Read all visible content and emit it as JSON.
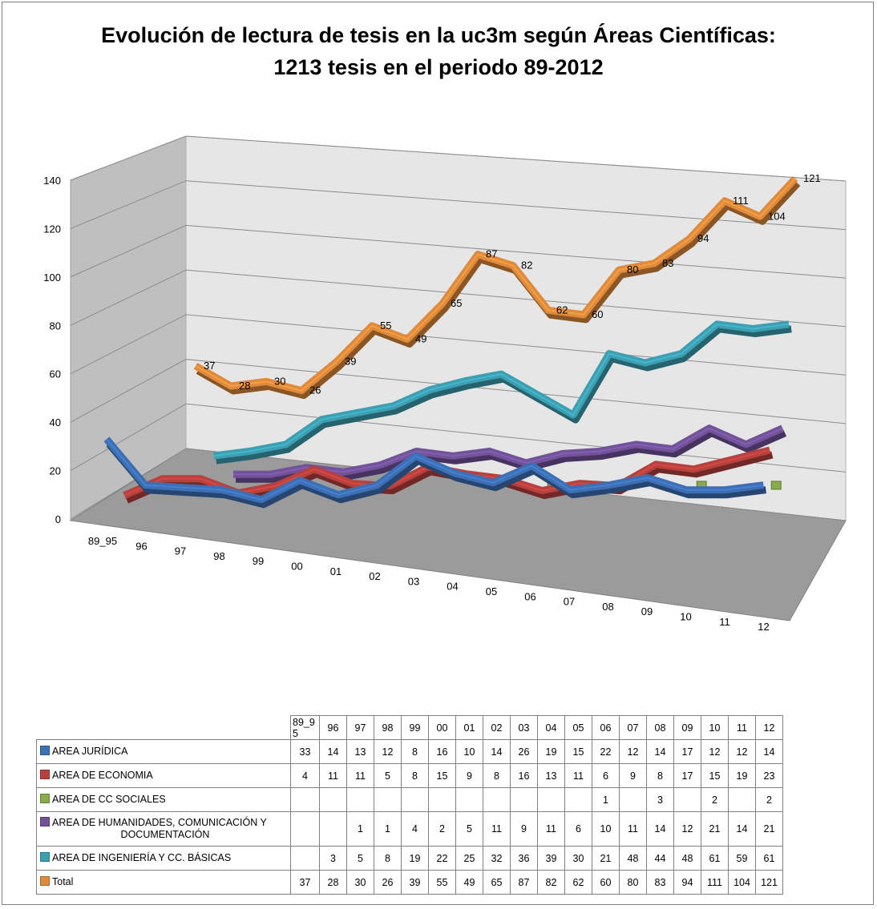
{
  "chart_data": {
    "type": "line",
    "title_line1": "Evolución de lectura de tesis en la uc3m según Áreas Científicas:",
    "title_line2": "1213 tesis  en el periodo 89-2012",
    "categories": [
      "89_95",
      "96",
      "97",
      "98",
      "99",
      "00",
      "01",
      "02",
      "03",
      "04",
      "05",
      "06",
      "07",
      "08",
      "09",
      "10",
      "11",
      "12"
    ],
    "table_categories": [
      "89_9 5",
      "96",
      "97",
      "98",
      "99",
      "00",
      "01",
      "02",
      "03",
      "04",
      "05",
      "06",
      "07",
      "08",
      "09",
      "10",
      "11",
      "12"
    ],
    "ylim": [
      0,
      140
    ],
    "yticks": [
      "0",
      "20",
      "40",
      "60",
      "80",
      "100",
      "120",
      "140"
    ],
    "grid": true,
    "legend": "table",
    "series": [
      {
        "name": "AREA JURÍDICA",
        "color": "#3d6fb5",
        "values": [
          33,
          14,
          13,
          12,
          8,
          16,
          10,
          14,
          26,
          19,
          15,
          22,
          12,
          14,
          17,
          12,
          12,
          14
        ]
      },
      {
        "name": "AREA DE ECONOMIA",
        "color": "#b8403d",
        "values": [
          4,
          11,
          11,
          5,
          8,
          15,
          9,
          8,
          16,
          13,
          11,
          6,
          9,
          8,
          17,
          15,
          19,
          23
        ]
      },
      {
        "name": "AREA DE CC SOCIALES",
        "color": "#86ad4a",
        "values": [
          null,
          null,
          null,
          null,
          null,
          null,
          null,
          null,
          null,
          null,
          null,
          1,
          null,
          3,
          null,
          2,
          null,
          2
        ]
      },
      {
        "name": "AREA DE HUMANIDADES, COMUNICACIÓN Y DOCUMENTACIÓN",
        "label_line1": "AREA DE HUMANIDADES, COMUNICACIÓN Y",
        "label_line2": "DOCUMENTACIÓN",
        "color": "#72539a",
        "values": [
          null,
          null,
          1,
          1,
          4,
          2,
          5,
          11,
          9,
          11,
          6,
          10,
          11,
          14,
          12,
          21,
          14,
          21
        ]
      },
      {
        "name": "AREA DE INGENIERÍA  Y CC. BÁSICAS",
        "color": "#3d9fb2",
        "values": [
          null,
          3,
          5,
          8,
          19,
          22,
          25,
          32,
          36,
          39,
          30,
          21,
          48,
          44,
          48,
          61,
          59,
          61
        ]
      },
      {
        "name": "Total",
        "color": "#e08a3c",
        "values": [
          37,
          28,
          30,
          26,
          39,
          55,
          49,
          65,
          87,
          82,
          62,
          60,
          80,
          83,
          94,
          111,
          104,
          121
        ]
      }
    ]
  }
}
